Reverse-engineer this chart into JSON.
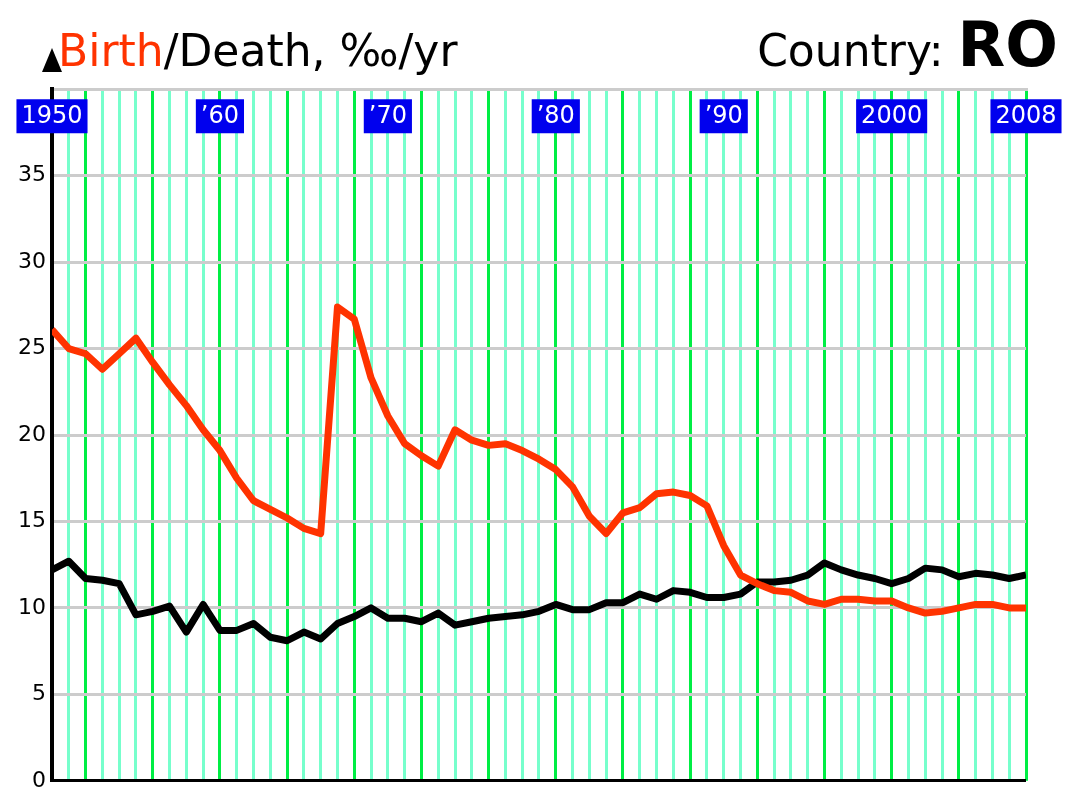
{
  "chart_data": {
    "type": "line",
    "title": "/Death, ‰/yr",
    "subtitle": "Country: RO",
    "x": [
      1950,
      1951,
      1952,
      1953,
      1954,
      1955,
      1956,
      1957,
      1958,
      1959,
      1960,
      1961,
      1962,
      1963,
      1964,
      1965,
      1966,
      1967,
      1968,
      1969,
      1970,
      1971,
      1972,
      1973,
      1974,
      1975,
      1976,
      1977,
      1978,
      1979,
      1980,
      1981,
      1982,
      1983,
      1984,
      1985,
      1986,
      1987,
      1988,
      1989,
      1990,
      1991,
      1992,
      1993,
      1994,
      1995,
      1996,
      1997,
      1998,
      1999,
      2000,
      2001,
      2002,
      2003,
      2004,
      2005,
      2006,
      2007,
      2008
    ],
    "series": [
      {
        "name": "Birth",
        "color": "#ff3300",
        "values": [
          26.1,
          25.0,
          24.7,
          23.8,
          24.7,
          25.6,
          24.2,
          22.9,
          21.7,
          20.3,
          19.1,
          17.5,
          16.2,
          15.7,
          15.2,
          14.6,
          14.3,
          27.4,
          26.7,
          23.3,
          21.1,
          19.5,
          18.8,
          18.2,
          20.3,
          19.7,
          19.4,
          19.5,
          19.1,
          18.6,
          18.0,
          17.0,
          15.3,
          14.3,
          15.5,
          15.8,
          16.6,
          16.7,
          16.5,
          15.9,
          13.6,
          11.9,
          11.4,
          11.0,
          10.9,
          10.4,
          10.2,
          10.5,
          10.5,
          10.4,
          10.4,
          10.0,
          9.7,
          9.8,
          10.0,
          10.2,
          10.2,
          10.0,
          10.0
        ]
      },
      {
        "color": "#000000",
        "values": [
          12.2,
          12.7,
          11.7,
          11.6,
          11.4,
          9.6,
          9.8,
          10.1,
          8.6,
          10.2,
          8.7,
          8.7,
          9.1,
          8.3,
          8.1,
          8.6,
          8.2,
          9.1,
          9.5,
          10.0,
          9.4,
          9.4,
          9.2,
          9.7,
          9.0,
          9.2,
          9.4,
          9.5,
          9.6,
          9.8,
          10.2,
          9.9,
          9.9,
          10.3,
          10.3,
          10.8,
          10.5,
          11.0,
          10.9,
          10.6,
          10.6,
          10.8,
          11.5,
          11.5,
          11.6,
          11.9,
          12.6,
          12.2,
          11.9,
          11.7,
          11.4,
          11.7,
          12.3,
          12.2,
          11.8,
          12.0,
          11.9,
          11.7,
          11.9
        ]
      }
    ],
    "xlim": [
      1950,
      2008
    ],
    "xticks": [
      {
        "value": 1950,
        "label": "1950"
      },
      {
        "value": 1951,
        "label": null
      },
      {
        "value": 1952,
        "label": null
      },
      {
        "value": 1953,
        "label": null
      },
      {
        "value": 1954,
        "label": null
      },
      {
        "value": 1955,
        "label": null
      },
      {
        "value": 1956,
        "label": null
      },
      {
        "value": 1957,
        "label": null
      },
      {
        "value": 1958,
        "label": null
      },
      {
        "value": 1959,
        "label": null
      },
      {
        "value": 1960,
        "label": "’60"
      },
      {
        "value": 1961,
        "label": null
      },
      {
        "value": 1962,
        "label": null
      },
      {
        "value": 1963,
        "label": null
      },
      {
        "value": 1964,
        "label": null
      },
      {
        "value": 1965,
        "label": null
      },
      {
        "value": 1966,
        "label": null
      },
      {
        "value": 1967,
        "label": null
      },
      {
        "value": 1968,
        "label": null
      },
      {
        "value": 1969,
        "label": null
      },
      {
        "value": 1970,
        "label": "’70"
      },
      {
        "value": 1971,
        "label": null
      },
      {
        "value": 1972,
        "label": null
      },
      {
        "value": 1973,
        "label": null
      },
      {
        "value": 1974,
        "label": null
      },
      {
        "value": 1975,
        "label": null
      },
      {
        "value": 1976,
        "label": null
      },
      {
        "value": 1977,
        "label": null
      },
      {
        "value": 1978,
        "label": null
      },
      {
        "value": 1979,
        "label": null
      },
      {
        "value": 1980,
        "label": "’80"
      },
      {
        "value": 1981,
        "label": null
      },
      {
        "value": 1982,
        "label": null
      },
      {
        "value": 1983,
        "label": null
      },
      {
        "value": 1984,
        "label": null
      },
      {
        "value": 1985,
        "label": null
      },
      {
        "value": 1986,
        "label": null
      },
      {
        "value": 1987,
        "label": null
      },
      {
        "value": 1988,
        "label": null
      },
      {
        "value": 1989,
        "label": null
      },
      {
        "value": 1990,
        "label": "’90"
      },
      {
        "value": 1991,
        "label": null
      },
      {
        "value": 1992,
        "label": null
      },
      {
        "value": 1993,
        "label": null
      },
      {
        "value": 1994,
        "label": null
      },
      {
        "value": 1995,
        "label": null
      },
      {
        "value": 1996,
        "label": null
      },
      {
        "value": 1997,
        "label": null
      },
      {
        "value": 1998,
        "label": null
      },
      {
        "value": 1999,
        "label": null
      },
      {
        "value": 2000,
        "label": "2000"
      },
      {
        "value": 2001,
        "label": null
      },
      {
        "value": 2002,
        "label": null
      },
      {
        "value": 2003,
        "label": null
      },
      {
        "value": 2004,
        "label": null
      },
      {
        "value": 2005,
        "label": null
      },
      {
        "value": 2006,
        "label": null
      },
      {
        "value": 2007,
        "label": null
      },
      {
        "value": 2008,
        "label": "2008"
      }
    ],
    "ylim": [
      0,
      40
    ],
    "yticks": [
      0,
      5,
      10,
      15,
      20,
      25,
      30,
      35
    ],
    "grid": true,
    "legend": "top left",
    "marker": "none",
    "line_style": "solid"
  }
}
